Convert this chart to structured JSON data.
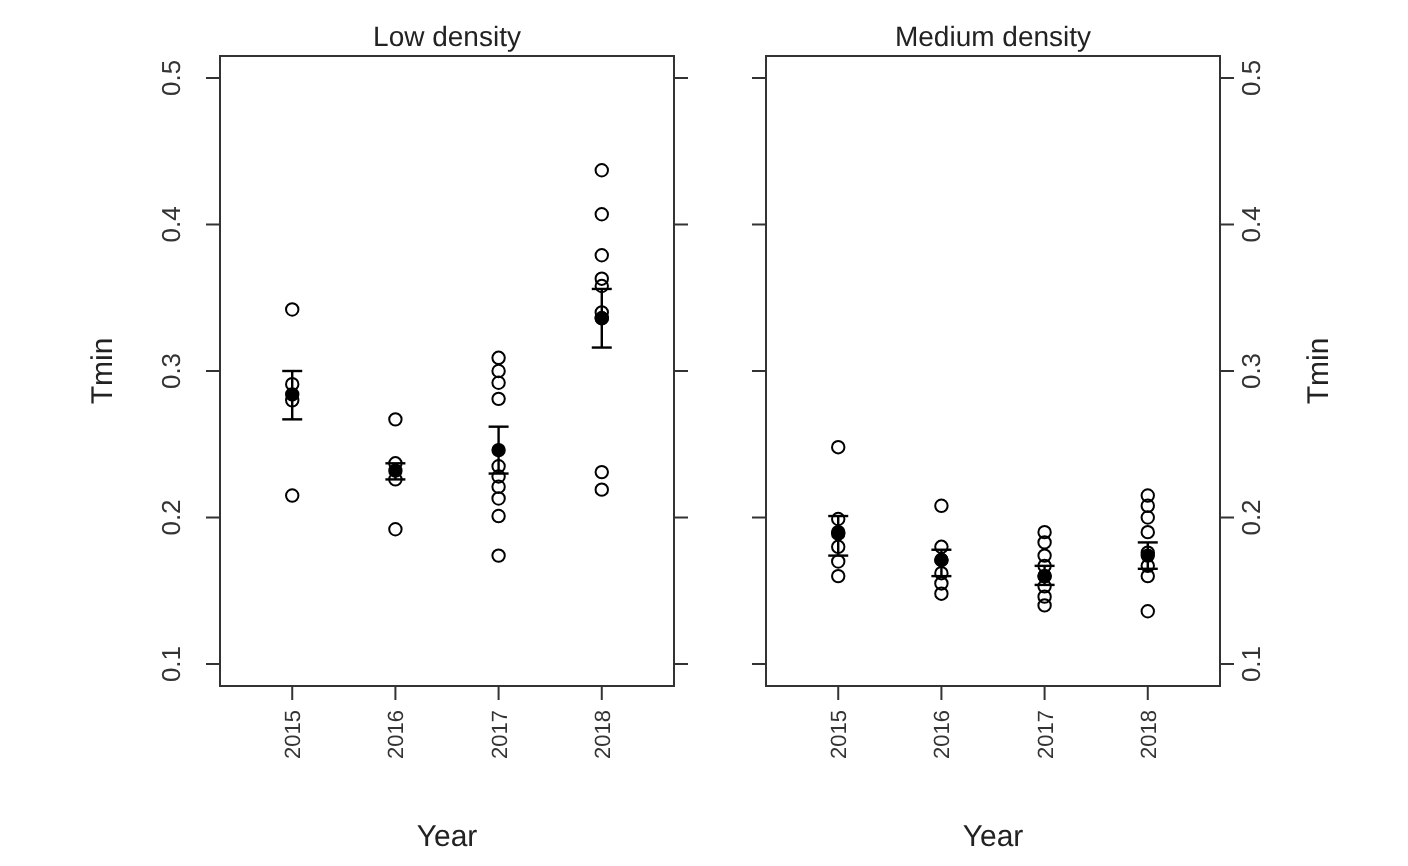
{
  "chart_data": [
    {
      "type": "scatter",
      "title": "Low density",
      "xlabel": "Year",
      "ylabel": "Tmin",
      "xlim": [
        2014.3,
        2018.7
      ],
      "xticks": [
        2015,
        2016,
        2017,
        2018
      ],
      "ylim": [
        0.085,
        0.515
      ],
      "yticks": [
        0.1,
        0.2,
        0.3,
        0.4,
        0.5
      ],
      "marker": "circle",
      "series": [
        {
          "color": "#000000",
          "x": [
            2015,
            2015,
            2015,
            2015,
            2016,
            2016,
            2016,
            2016,
            2017,
            2017,
            2017,
            2017,
            2017,
            2017,
            2017,
            2017,
            2017,
            2017,
            2018,
            2018,
            2018,
            2018,
            2018,
            2018,
            2018,
            2018,
            2018
          ],
          "values": [
            0.342,
            0.291,
            0.28,
            0.215,
            0.267,
            0.237,
            0.226,
            0.192,
            0.309,
            0.3,
            0.292,
            0.281,
            0.235,
            0.228,
            0.221,
            0.213,
            0.201,
            0.174,
            0.437,
            0.407,
            0.379,
            0.363,
            0.358,
            0.34,
            0.336,
            0.231,
            0.219
          ]
        },
        {
          "color": "#000000",
          "x": [
            2015,
            2016,
            2017,
            2018
          ],
          "values": [
            0.284,
            0.232,
            0.246,
            0.336
          ],
          "errors": [
            [
              0.267,
              0.3
            ],
            [
              0.226,
              0.237
            ],
            [
              0.23,
              0.262
            ],
            [
              0.316,
              0.356
            ]
          ]
        }
      ]
    },
    {
      "type": "scatter",
      "title": "Medium density",
      "xlabel": "Year",
      "y2label": "Tmin",
      "xlim": [
        2014.3,
        2018.7
      ],
      "xticks": [
        2015,
        2016,
        2017,
        2018
      ],
      "y2lim": [
        0.085,
        0.515
      ],
      "y2ticks": [
        0.1,
        0.2,
        0.3,
        0.4,
        0.5
      ],
      "marker": "circle",
      "series": [
        {
          "color": "#000000",
          "axis": "y2",
          "x": [
            2015,
            2015,
            2015,
            2015,
            2015,
            2015,
            2016,
            2016,
            2016,
            2016,
            2016,
            2016,
            2017,
            2017,
            2017,
            2017,
            2017,
            2017,
            2017,
            2017,
            2018,
            2018,
            2018,
            2018,
            2018,
            2018,
            2018,
            2018
          ],
          "values": [
            0.248,
            0.199,
            0.19,
            0.18,
            0.17,
            0.16,
            0.208,
            0.18,
            0.171,
            0.162,
            0.155,
            0.148,
            0.19,
            0.183,
            0.174,
            0.167,
            0.16,
            0.153,
            0.146,
            0.14,
            0.215,
            0.208,
            0.2,
            0.19,
            0.176,
            0.167,
            0.16,
            0.136
          ]
        },
        {
          "color": "#000000",
          "axis": "y2",
          "x": [
            2015,
            2016,
            2017,
            2018
          ],
          "values": [
            0.189,
            0.171,
            0.16,
            0.174
          ],
          "errors": [
            [
              0.174,
              0.201
            ],
            [
              0.16,
              0.178
            ],
            [
              0.154,
              0.167
            ],
            [
              0.165,
              0.183
            ]
          ]
        }
      ]
    }
  ]
}
